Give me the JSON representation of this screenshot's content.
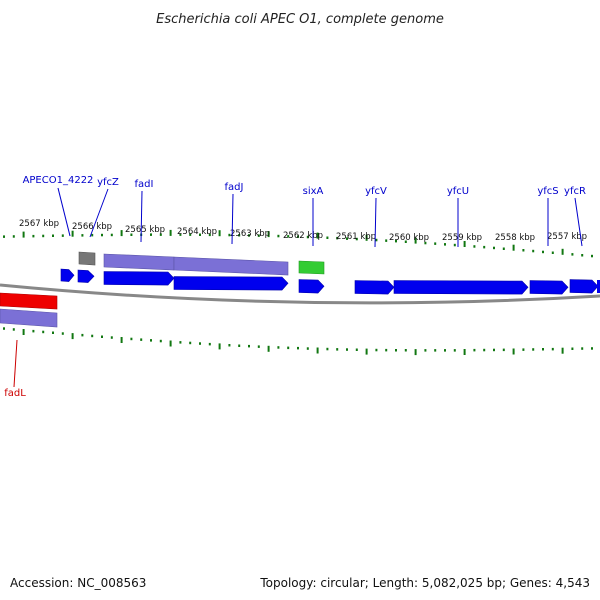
{
  "title": "Escherichia coli APEC O1, complete genome",
  "footer": {
    "accession": "Accession: NC_008563",
    "summary": "Topology: circular; Length: 5,082,025 bp; Genes: 4,543"
  },
  "colors": {
    "background": "#ffffff",
    "forward_gene": "#0000ee",
    "reverse_gene": "#ee0000",
    "gene_product": "#7b70d6",
    "rna_gene": "#33cc33",
    "pseudo_gene": "#777777",
    "backbone": "#888888",
    "tick": "#117711",
    "label_blue": "#0000cc",
    "label_red": "#cc0000"
  },
  "scale_labels": [
    "2567 kbp",
    "2566 kbp",
    "2565 kbp",
    "2564 kbp",
    "2563 kbp",
    "2562 kbp",
    "2561 kbp",
    "2560 kbp",
    "2559 kbp",
    "2558 kbp",
    "2557 kbp"
  ],
  "genes": [
    {
      "name": "APECO1_4222",
      "strand": "forward",
      "color": "blue"
    },
    {
      "name": "yfcZ",
      "strand": "forward",
      "color": "blue"
    },
    {
      "name": "fadI",
      "strand": "forward",
      "color": "blue"
    },
    {
      "name": "fadJ",
      "strand": "forward",
      "color": "blue"
    },
    {
      "name": "sixA",
      "strand": "forward",
      "color": "blue"
    },
    {
      "name": "yfcV",
      "strand": "forward",
      "color": "blue"
    },
    {
      "name": "yfcU",
      "strand": "forward",
      "color": "blue"
    },
    {
      "name": "yfcS",
      "strand": "forward",
      "color": "blue"
    },
    {
      "name": "yfcR",
      "strand": "forward",
      "color": "blue"
    },
    {
      "name": "fadL",
      "strand": "reverse",
      "color": "red"
    }
  ]
}
